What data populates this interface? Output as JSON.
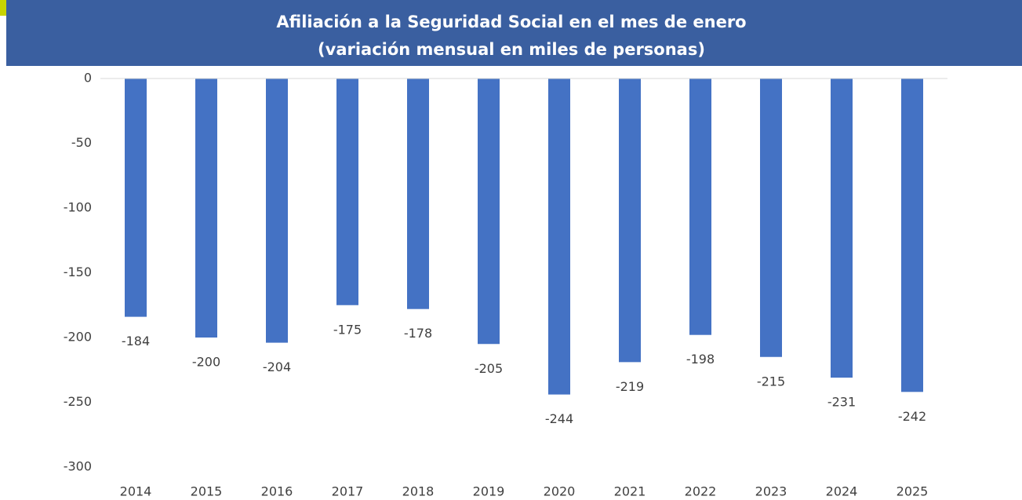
{
  "chart_data": {
    "type": "bar",
    "title": "Afiliación a la Seguridad Social en el mes de enero",
    "subtitle": "(variación mensual en miles de personas)",
    "categories": [
      "2014",
      "2015",
      "2016",
      "2017",
      "2018",
      "2019",
      "2020",
      "2021",
      "2022",
      "2023",
      "2024",
      "2025"
    ],
    "values": [
      -184,
      -200,
      -204,
      -175,
      -178,
      -205,
      -244,
      -219,
      -198,
      -215,
      -231,
      -242
    ],
    "color": "#4472c4",
    "ylim": [
      -300,
      0
    ],
    "yticks": [
      0,
      -50,
      -100,
      -150,
      -200,
      -250,
      -300
    ],
    "grid": false
  }
}
